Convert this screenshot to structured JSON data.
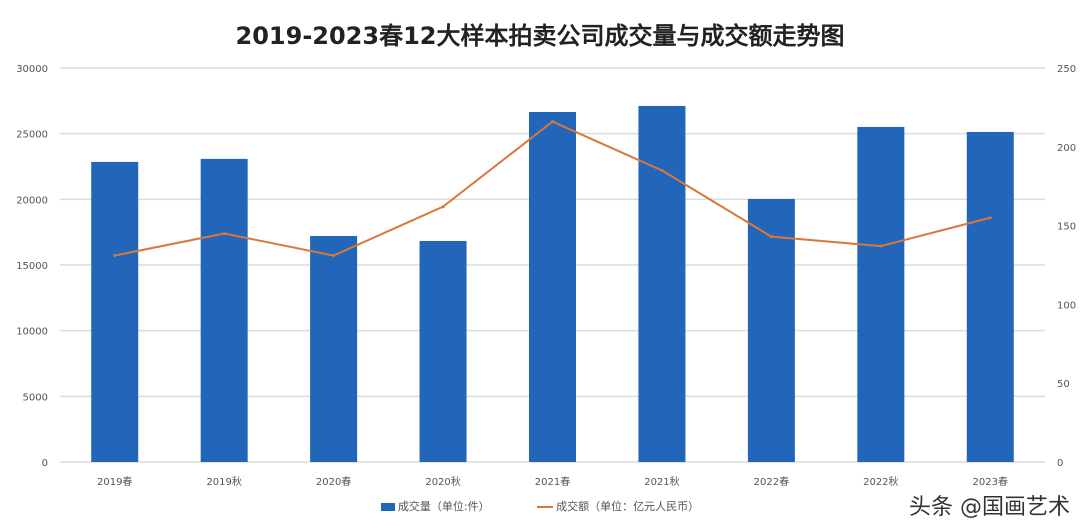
{
  "chart_data": {
    "type": "bar+line",
    "title": "2019-2023春12大样本拍卖公司成交量与成交额走势图",
    "categories": [
      "2019春",
      "2019秋",
      "2020春",
      "2020秋",
      "2021春",
      "2021秋",
      "2022春",
      "2022秋",
      "2023春"
    ],
    "series": [
      {
        "name": "成交量（单位:件）",
        "type": "bar",
        "axis": "left",
        "color": "#2166b8",
        "values": [
          22850,
          23080,
          17210,
          16830,
          26650,
          27110,
          20030,
          25510,
          25130
        ]
      },
      {
        "name": "成交额（单位：亿元人民币）",
        "type": "line",
        "axis": "right",
        "color": "#d9773a",
        "values": [
          131,
          145,
          131,
          162,
          216,
          185,
          143,
          137,
          155
        ]
      }
    ],
    "left_axis": {
      "ylim": [
        0,
        30000
      ],
      "ticks": [
        "0",
        "5000",
        "10000",
        "15000",
        "20000",
        "25000",
        "30000"
      ]
    },
    "right_axis": {
      "ylim": [
        0,
        250
      ],
      "ticks": [
        "0",
        "50",
        "100",
        "150",
        "200",
        "250"
      ]
    },
    "grid": true,
    "legend": "bottom"
  },
  "watermark": "头条 @国画艺术"
}
